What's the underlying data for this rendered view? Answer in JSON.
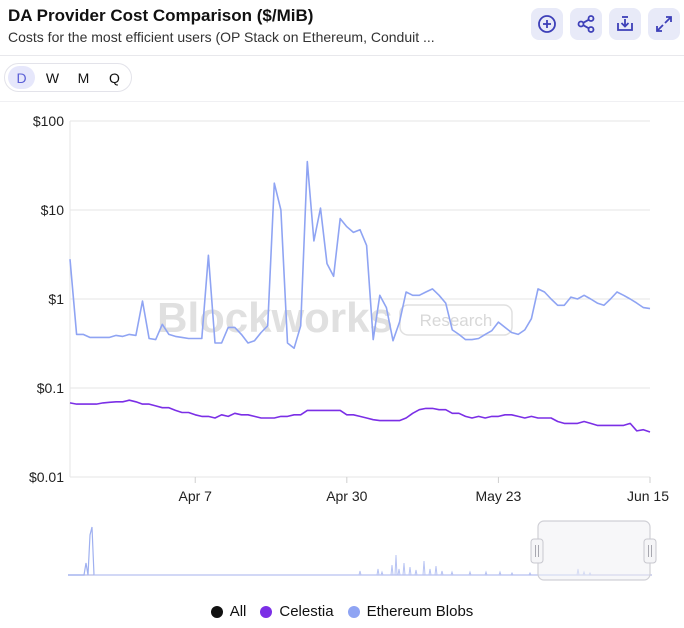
{
  "header": {
    "title": "DA Provider Cost Comparison ($/MiB)",
    "subtitle": "Costs for the most efficient users (OP Stack on Ethereum, Conduit ..."
  },
  "toolbar": {
    "icons": [
      "add-circle-icon",
      "share-icon",
      "download-icon",
      "expand-icon"
    ]
  },
  "range_tabs": {
    "items": [
      "D",
      "W",
      "M",
      "Q"
    ],
    "active": "D"
  },
  "watermark": {
    "brand": "Blockworks",
    "tag": "Research"
  },
  "colors": {
    "all": "#111111",
    "celestia": "#7b2fe6",
    "ethereum_blobs": "#8fa4f3",
    "accent": "#5b5fd6"
  },
  "chart_data": {
    "type": "line",
    "title": "DA Provider Cost Comparison ($/MiB)",
    "y_scale": "log",
    "ylim": [
      0.01,
      100
    ],
    "y_ticks": [
      "$100",
      "$10",
      "$1",
      "$0.1",
      "$0.01"
    ],
    "y_tick_values": [
      100,
      10,
      1,
      0.1,
      0.01
    ],
    "x_tick_labels": [
      "Apr 7",
      "Apr 30",
      "May 23",
      "Jun 15"
    ],
    "x_tick_index": [
      19,
      42,
      65,
      88
    ],
    "x_count": 89,
    "legend_position": "bottom",
    "grid": true,
    "series": [
      {
        "name": "Celestia",
        "values": [
          0.068,
          0.066,
          0.066,
          0.066,
          0.066,
          0.068,
          0.069,
          0.07,
          0.07,
          0.073,
          0.07,
          0.066,
          0.066,
          0.063,
          0.06,
          0.06,
          0.056,
          0.053,
          0.053,
          0.05,
          0.048,
          0.048,
          0.046,
          0.05,
          0.048,
          0.052,
          0.05,
          0.05,
          0.048,
          0.046,
          0.046,
          0.046,
          0.048,
          0.048,
          0.05,
          0.05,
          0.056,
          0.056,
          0.056,
          0.056,
          0.056,
          0.056,
          0.05,
          0.05,
          0.048,
          0.046,
          0.044,
          0.043,
          0.043,
          0.043,
          0.043,
          0.046,
          0.052,
          0.057,
          0.059,
          0.059,
          0.057,
          0.057,
          0.052,
          0.052,
          0.048,
          0.046,
          0.048,
          0.046,
          0.048,
          0.048,
          0.05,
          0.05,
          0.048,
          0.046,
          0.048,
          0.046,
          0.046,
          0.046,
          0.042,
          0.04,
          0.04,
          0.04,
          0.042,
          0.04,
          0.038,
          0.038,
          0.038,
          0.038,
          0.038,
          0.04,
          0.033,
          0.034,
          0.032
        ]
      },
      {
        "name": "Ethereum Blobs",
        "values": [
          2.8,
          0.4,
          0.4,
          0.37,
          0.37,
          0.37,
          0.37,
          0.39,
          0.38,
          0.4,
          0.39,
          0.95,
          0.36,
          0.35,
          0.52,
          0.4,
          0.38,
          0.37,
          0.36,
          0.36,
          0.36,
          3.1,
          0.32,
          0.32,
          0.48,
          0.48,
          0.4,
          0.32,
          0.34,
          0.42,
          0.5,
          20,
          10,
          0.32,
          0.28,
          0.5,
          35,
          4.5,
          10.5,
          2.5,
          1.8,
          8,
          6.5,
          5.6,
          6,
          4,
          0.35,
          1.1,
          0.8,
          0.34,
          0.55,
          1.2,
          1.1,
          1.1,
          1.2,
          1.3,
          1.1,
          0.9,
          0.45,
          0.4,
          0.35,
          0.35,
          0.36,
          0.4,
          0.44,
          0.55,
          0.48,
          0.42,
          0.4,
          0.45,
          0.6,
          1.3,
          1.2,
          1.0,
          0.85,
          0.85,
          1.05,
          1.0,
          1.1,
          1.0,
          0.9,
          0.85,
          1.0,
          1.2,
          1.1,
          1.0,
          0.9,
          0.8,
          0.78
        ]
      }
    ],
    "legend": [
      "All",
      "Celestia",
      "Ethereum Blobs"
    ]
  }
}
